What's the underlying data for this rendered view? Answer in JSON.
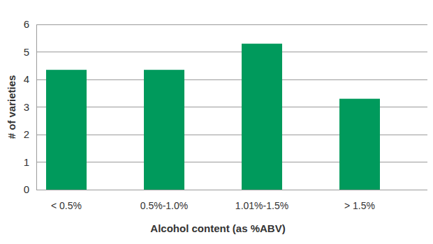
{
  "chart_data": {
    "type": "bar",
    "categories": [
      "< 0.5%",
      "0.5%-1.0%",
      "1.01%-1.5%",
      "> 1.5%"
    ],
    "values": [
      4.35,
      4.35,
      5.3,
      3.3
    ],
    "color": "#009a5c",
    "x_label": "Alcohol content (as %ABV)",
    "y_label": "# of varieties",
    "ylim": [
      0,
      6
    ],
    "yticks": [
      0,
      1,
      2,
      3,
      4,
      5,
      6
    ],
    "grid": true
  }
}
